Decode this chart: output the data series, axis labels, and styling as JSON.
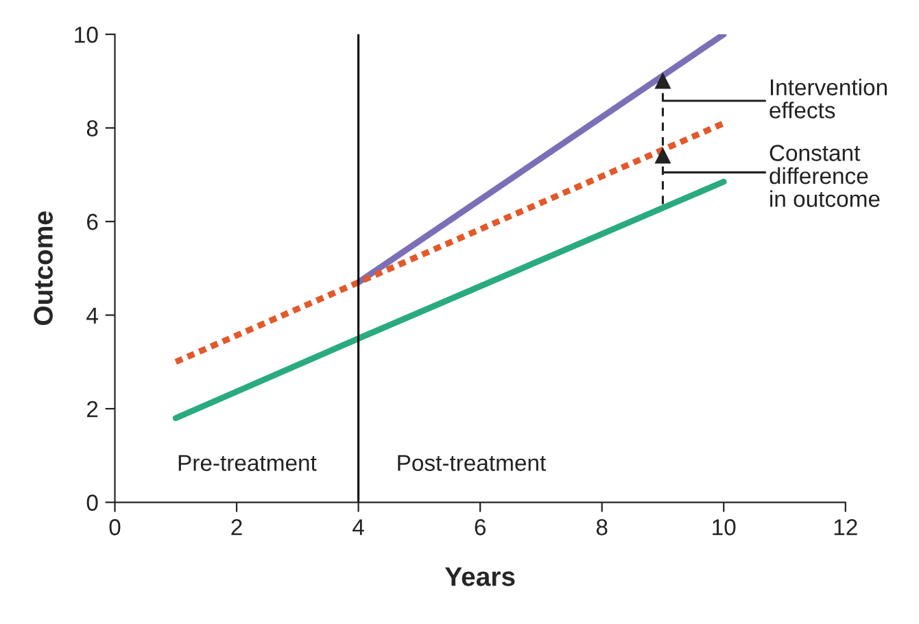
{
  "chart_data": {
    "type": "line",
    "xlabel": "Years",
    "ylabel": "Outcome",
    "series": [
      {
        "x": [
          4,
          10
        ],
        "values": [
          4.7,
          10.0
        ],
        "color": "#7b6fb8",
        "line_style": "solid"
      },
      {
        "x": [
          1,
          10
        ],
        "values": [
          3.0,
          8.1
        ],
        "color": "#e2592a",
        "line_style": "dotted"
      },
      {
        "x": [
          1,
          4,
          10
        ],
        "values": [
          1.8,
          3.5,
          6.85
        ],
        "color": "#2aab7f",
        "line_style": "solid"
      },
      {
        "x": [
          9,
          9,
          9
        ],
        "values": [
          6.37,
          7.4,
          9.0
        ],
        "color": "#222222",
        "line_style": "dashed",
        "marker": "triangle"
      }
    ],
    "xlim": [
      0,
      12
    ],
    "xticks": [
      0,
      2,
      4,
      6,
      8,
      10,
      12
    ],
    "ylim": [
      0,
      10
    ],
    "yticks": [
      0,
      2,
      4,
      6,
      8,
      10
    ],
    "grid": false,
    "legend": false,
    "marker": "none",
    "ref_lines": [
      {
        "axis": "x",
        "value": 4,
        "color": "#000000"
      }
    ],
    "annotations": [
      "Pre-treatment",
      "Post-treatment",
      "Intervention\neffects",
      "Constant\ndifference\nin outcome"
    ]
  }
}
